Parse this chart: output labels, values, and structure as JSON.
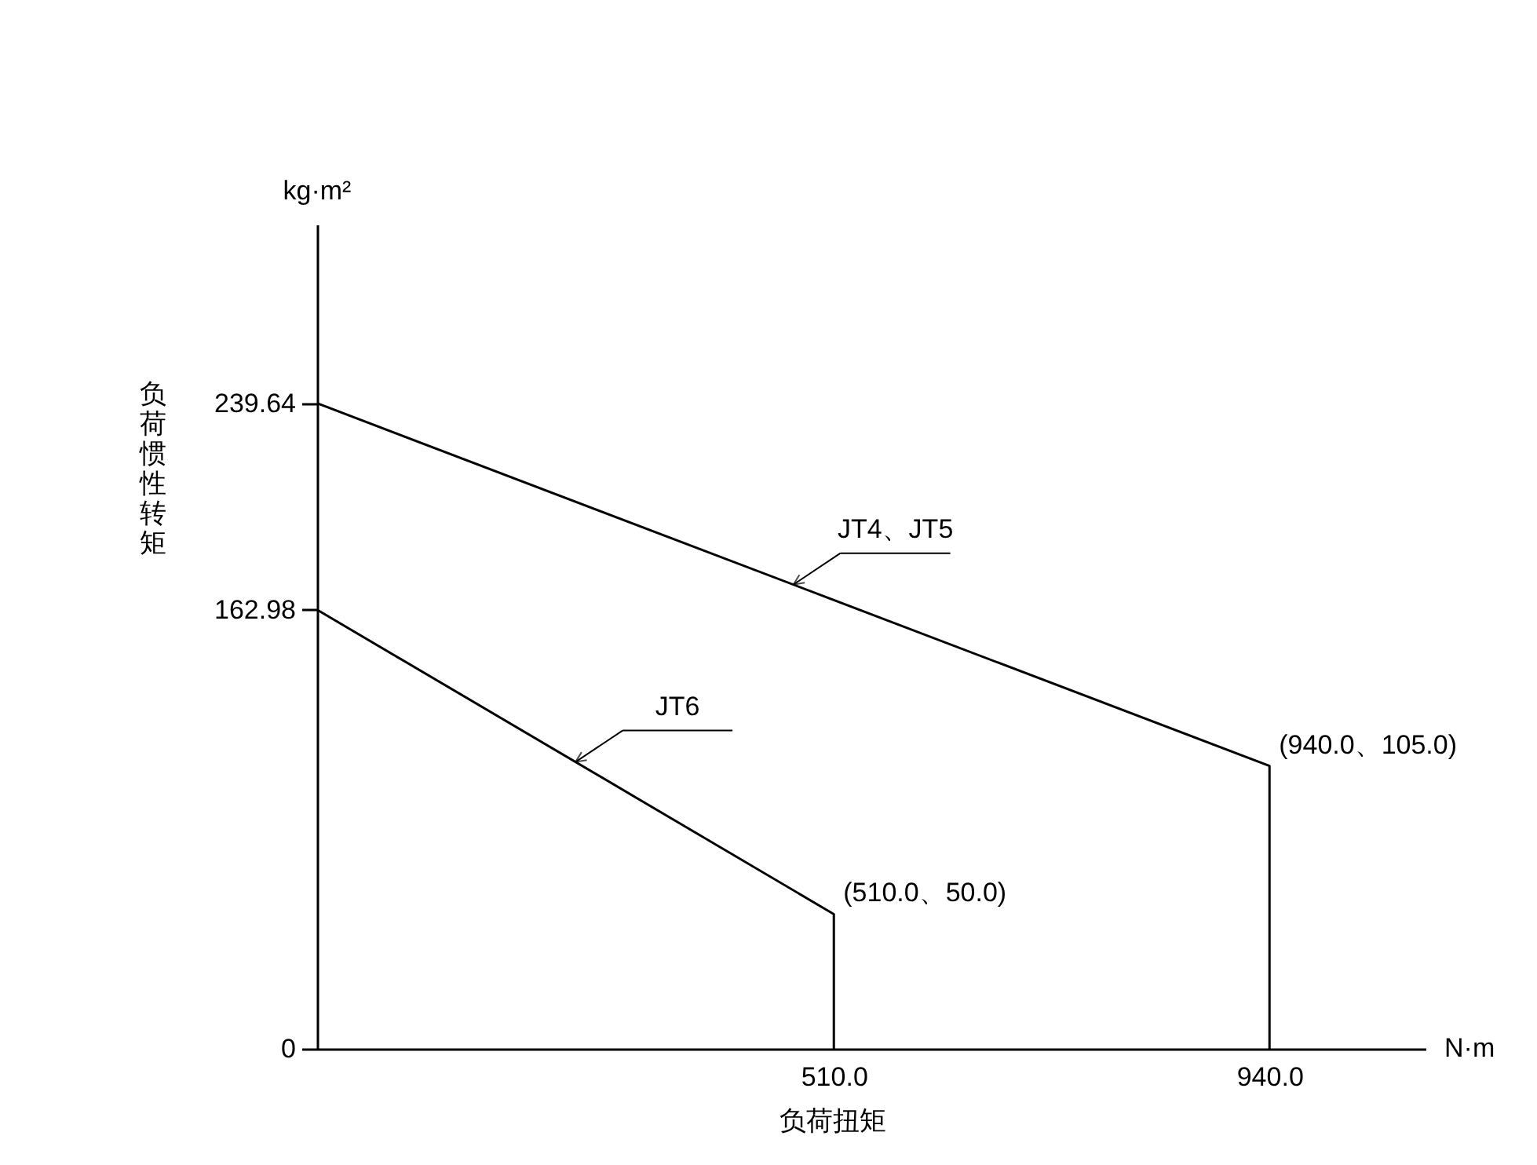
{
  "chart_data": {
    "type": "line",
    "xlabel": "负荷扭矩",
    "ylabel": "负荷惯性转矩",
    "xlim": [
      0,
      1094
    ],
    "ylim": [
      0,
      306
    ],
    "xticks": [
      {
        "value": 510,
        "label": "510.0"
      },
      {
        "value": 940,
        "label": "940.0"
      }
    ],
    "yticks": [
      0,
      162.98,
      239.64
    ],
    "series": [
      {
        "name": "JT4、JT5",
        "color": "#000000",
        "x": [
          0,
          940,
          940
        ],
        "values": [
          239.64,
          105,
          0
        ]
      },
      {
        "name": "JT6",
        "color": "#000000",
        "x": [
          0,
          510,
          510
        ],
        "values": [
          162.98,
          50,
          0
        ]
      }
    ],
    "annotations": [
      "kg·m²",
      "N·m",
      {
        "text": "(940.0、105.0)",
        "x": 940,
        "y": 105
      },
      {
        "text": "(510.0、50.0)",
        "x": 510,
        "y": 50
      }
    ],
    "grid": false,
    "marker": "none",
    "line_style": "solid"
  }
}
